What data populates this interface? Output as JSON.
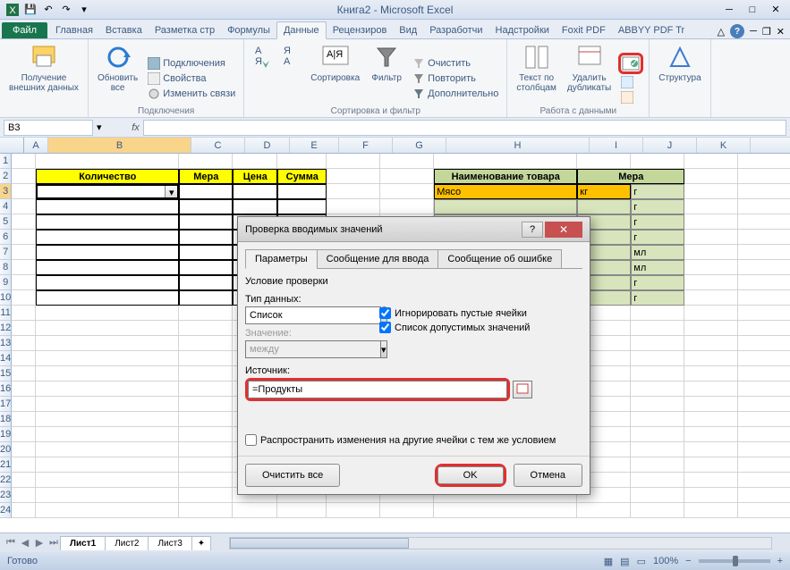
{
  "title": "Книга2 - Microsoft Excel",
  "qat": {
    "save": "💾",
    "undo": "↶",
    "redo": "↷"
  },
  "tabs": {
    "file": "Файл",
    "home": "Главная",
    "insert": "Вставка",
    "layout": "Разметка стр",
    "formulas": "Формулы",
    "data": "Данные",
    "review": "Рецензиров",
    "view": "Вид",
    "developer": "Разработчи",
    "addins": "Надстройки",
    "foxit": "Foxit PDF",
    "abbyy": "ABBYY PDF Tr"
  },
  "ribbon": {
    "g1": {
      "btn1": "Получение\nвнешних данных"
    },
    "g2": {
      "label": "Подключения",
      "refresh": "Обновить\nвсе",
      "conn": "Подключения",
      "props": "Свойства",
      "edit": "Изменить связи"
    },
    "g3": {
      "label": "Сортировка и фильтр",
      "sort": "Сортировка",
      "filter": "Фильтр",
      "clear": "Очистить",
      "reapply": "Повторить",
      "adv": "Дополнительно"
    },
    "g4": {
      "label": "Работа с данными",
      "text": "Текст по\nстолбцам",
      "dup": "Удалить\nдубликаты"
    },
    "g5": {
      "struct": "Структура"
    }
  },
  "namebox": "B3",
  "cols": {
    "A": 27,
    "B": 160,
    "C": 60,
    "D": 50,
    "E": 55,
    "F": 60,
    "G": 60,
    "H": 160,
    "I": 60,
    "J": 60,
    "K": 60
  },
  "headers": {
    "b": "Количество",
    "c": "Мера",
    "d": "Цена",
    "e": "Сумма",
    "h": "Наименование товара",
    "i": "Мера"
  },
  "data_h3": "Мясо",
  "data_i3": "кг",
  "mera": [
    "г",
    "г",
    "г",
    "г",
    "мл",
    "мл",
    "г",
    "г"
  ],
  "sheets": {
    "s1": "Лист1",
    "s2": "Лист2",
    "s3": "Лист3"
  },
  "status": "Готово",
  "zoom": "100%",
  "dialog": {
    "title": "Проверка вводимых значений",
    "tab1": "Параметры",
    "tab2": "Сообщение для ввода",
    "tab3": "Сообщение об ошибке",
    "cond": "Условие проверки",
    "type_label": "Тип данных:",
    "type_val": "Список",
    "ignore": "Игнорировать пустые ячейки",
    "list": "Список допустимых значений",
    "val_label": "Значение:",
    "val_val": "между",
    "src_label": "Источник:",
    "src_val": "=Продукты",
    "spread": "Распространить изменения на другие ячейки с тем же условием",
    "clear": "Очистить все",
    "ok": "OK",
    "cancel": "Отмена"
  }
}
